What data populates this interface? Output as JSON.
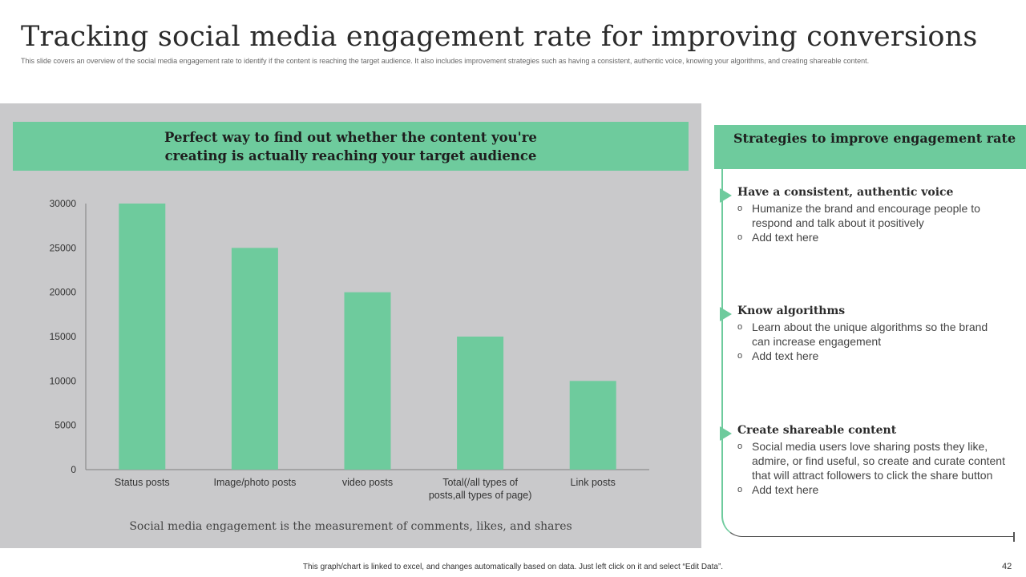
{
  "slide": {
    "title": "Tracking social media engagement rate for improving conversions",
    "subtitle": "This slide covers an overview of the social media engagement rate to identify if the content is reaching the target audience. It also includes improvement strategies such as having a consistent, authentic voice, knowing your algorithms, and creating shareable content.",
    "footer_note": "This graph/chart is linked to excel, and changes automatically based on data. Just left click on it and select “Edit Data”.",
    "page_number": "42"
  },
  "left_panel": {
    "header": "Perfect way to find out whether the content you're creating is actually reaching your target audience",
    "caption": "Social media engagement is the measurement of comments, likes, and shares"
  },
  "right_panel": {
    "header": "Strategies to improve engagement rate",
    "strategies": [
      {
        "title": "Have a consistent, authentic voice",
        "points": [
          "Humanize the brand and encourage people to respond and talk about it positively",
          "Add text here"
        ]
      },
      {
        "title": "Know algorithms",
        "points": [
          "Learn about the unique algorithms so the brand can increase engagement",
          "Add text here"
        ]
      },
      {
        "title": "Create shareable content",
        "points": [
          "Social media users love sharing posts they like, admire, or find useful, so create and curate content that will attract followers to click the share button",
          "Add text here"
        ]
      }
    ]
  },
  "colors": {
    "accent": "#6ecb9d",
    "panel_bg": "#c9c9cb",
    "axis": "#7f7f7f"
  },
  "chart_data": {
    "type": "bar",
    "title": "",
    "xlabel": "",
    "ylabel": "",
    "categories": [
      "Status posts",
      "Image/photo posts",
      "video posts",
      "Total(/all types of posts,all types of page)",
      "Link posts"
    ],
    "category_label_lines": [
      [
        "Status posts"
      ],
      [
        "Image/photo posts"
      ],
      [
        "video posts"
      ],
      [
        "Total(/all types of",
        "posts,all types of page)"
      ],
      [
        "Link posts"
      ]
    ],
    "values": [
      30000,
      25000,
      20000,
      15000,
      10000
    ],
    "ylim": [
      0,
      30000
    ],
    "yticks": [
      0,
      5000,
      10000,
      15000,
      20000,
      25000,
      30000
    ],
    "grid": false,
    "legend": "none"
  }
}
